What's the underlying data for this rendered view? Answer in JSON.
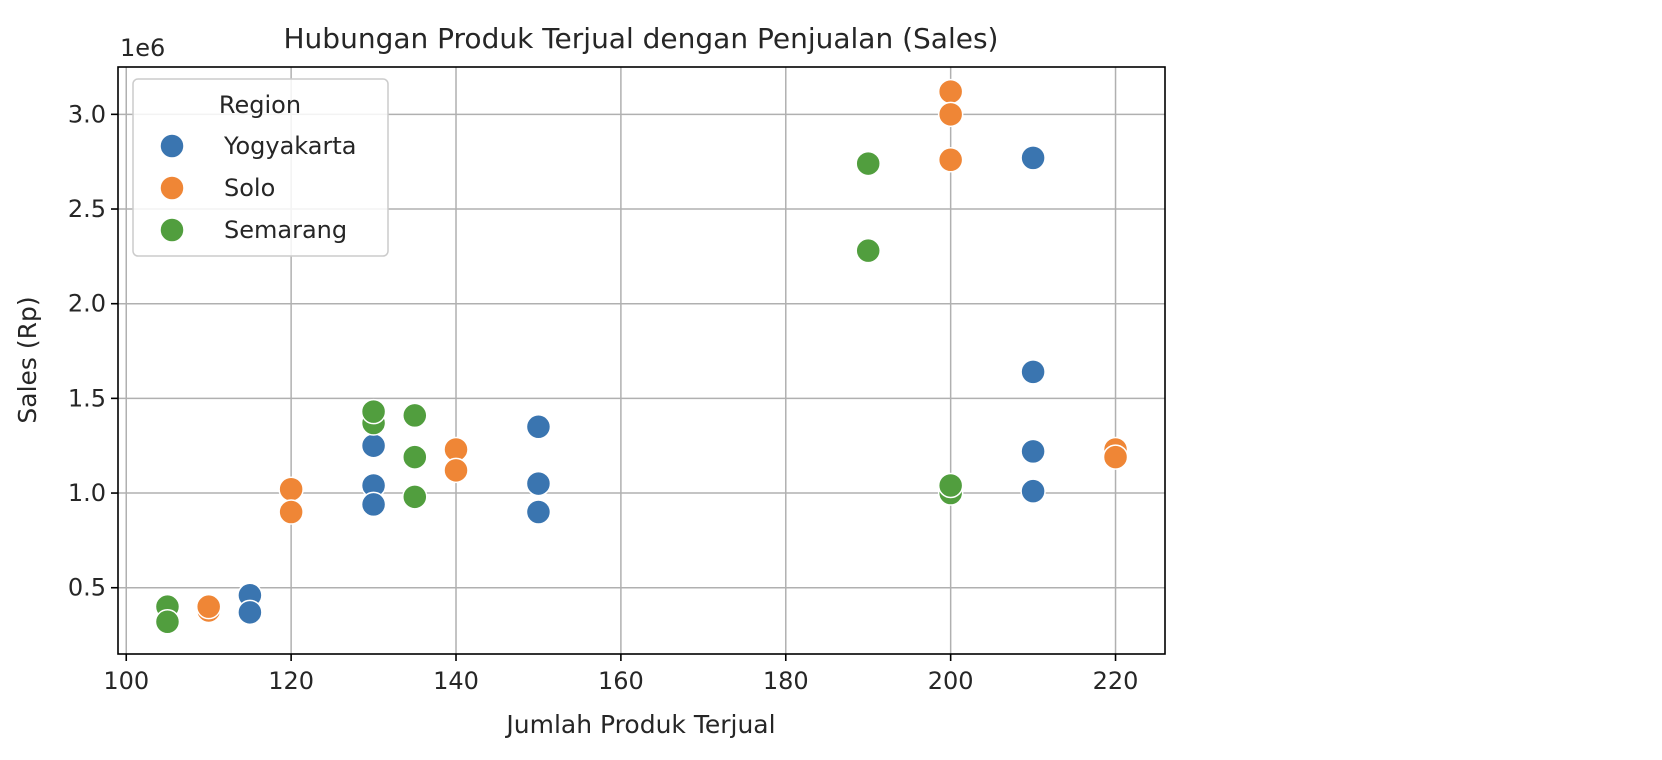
{
  "chart_data": {
    "type": "scatter",
    "title": "Hubungan Produk Terjual dengan Penjualan (Sales)",
    "xlabel": "Jumlah Produk Terjual",
    "ylabel": "Sales (Rp)",
    "y_offset_text": "1e6",
    "xlim": [
      99,
      226
    ],
    "ylim": [
      0.15,
      3.25
    ],
    "y_unit_multiplier": 1000000,
    "xticks": [
      100,
      120,
      140,
      160,
      180,
      200,
      220
    ],
    "yticks": [
      0.5,
      1.0,
      1.5,
      2.0,
      2.5,
      3.0
    ],
    "xtick_labels": [
      "100",
      "120",
      "140",
      "160",
      "180",
      "200",
      "220"
    ],
    "ytick_labels": [
      "0.5",
      "1.0",
      "1.5",
      "2.0",
      "2.5",
      "3.0"
    ],
    "grid": true,
    "legend": {
      "title": "Region",
      "placement": "upper-left"
    },
    "series": [
      {
        "name": "Yogyakarta",
        "color": "#3a75b0",
        "points": [
          {
            "x": 115,
            "y": 0.46
          },
          {
            "x": 115,
            "y": 0.37
          },
          {
            "x": 130,
            "y": 1.25
          },
          {
            "x": 130,
            "y": 1.04
          },
          {
            "x": 130,
            "y": 0.94
          },
          {
            "x": 150,
            "y": 1.35
          },
          {
            "x": 150,
            "y": 1.05
          },
          {
            "x": 150,
            "y": 0.9
          },
          {
            "x": 210,
            "y": 2.77
          },
          {
            "x": 210,
            "y": 1.64
          },
          {
            "x": 210,
            "y": 1.22
          },
          {
            "x": 210,
            "y": 1.01
          }
        ]
      },
      {
        "name": "Solo",
        "color": "#ef8636",
        "points": [
          {
            "x": 110,
            "y": 0.38
          },
          {
            "x": 110,
            "y": 0.4
          },
          {
            "x": 120,
            "y": 1.02
          },
          {
            "x": 120,
            "y": 0.9
          },
          {
            "x": 140,
            "y": 1.23
          },
          {
            "x": 140,
            "y": 1.12
          },
          {
            "x": 200,
            "y": 3.12
          },
          {
            "x": 200,
            "y": 3.0
          },
          {
            "x": 200,
            "y": 2.76
          },
          {
            "x": 220,
            "y": 1.23
          },
          {
            "x": 220,
            "y": 1.19
          }
        ]
      },
      {
        "name": "Semarang",
        "color": "#519e3e",
        "points": [
          {
            "x": 105,
            "y": 0.4
          },
          {
            "x": 105,
            "y": 0.32
          },
          {
            "x": 130,
            "y": 1.37
          },
          {
            "x": 130,
            "y": 1.43
          },
          {
            "x": 135,
            "y": 1.41
          },
          {
            "x": 135,
            "y": 1.19
          },
          {
            "x": 135,
            "y": 0.98
          },
          {
            "x": 190,
            "y": 2.74
          },
          {
            "x": 190,
            "y": 2.28
          },
          {
            "x": 200,
            "y": 1.0
          },
          {
            "x": 200,
            "y": 1.04
          }
        ]
      }
    ]
  }
}
